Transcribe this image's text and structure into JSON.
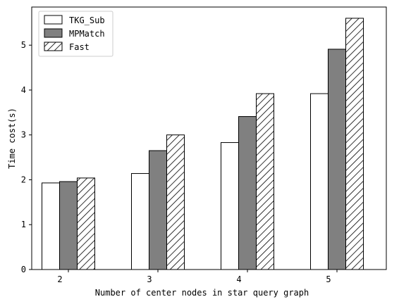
{
  "chart_data": {
    "type": "bar",
    "title": "",
    "xlabel": "Number of center nodes in star query graph",
    "ylabel": "Time cost(s)",
    "categories": [
      "2",
      "3",
      "4",
      "5"
    ],
    "ylim": [
      0,
      5.85
    ],
    "yticks": [
      0,
      1,
      2,
      3,
      4,
      5
    ],
    "grid": false,
    "legend_position": "top-left",
    "series": [
      {
        "name": "TKG_Sub",
        "values": [
          1.93,
          2.14,
          2.83,
          3.92
        ],
        "fill": "#ffffff",
        "pattern": "none"
      },
      {
        "name": "MPMatch",
        "values": [
          1.96,
          2.65,
          3.41,
          4.91
        ],
        "fill": "#808080",
        "pattern": "none"
      },
      {
        "name": "Fast",
        "values": [
          2.04,
          3.0,
          3.92,
          5.6
        ],
        "fill": "#ffffff",
        "pattern": "diagonal-hatch"
      }
    ]
  }
}
